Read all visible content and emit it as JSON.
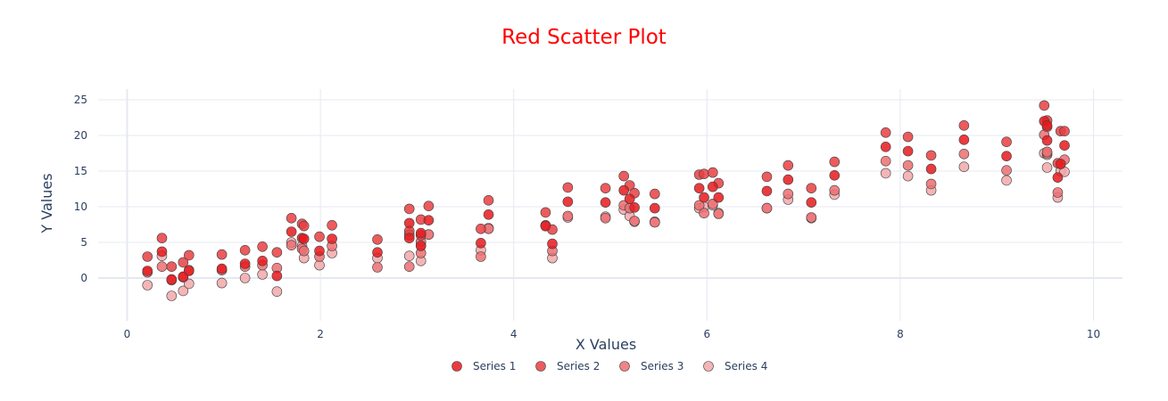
{
  "chart_data": {
    "type": "scatter",
    "title": "Red Scatter Plot",
    "title_color": "#ff0000",
    "xlabel": "X Values",
    "ylabel": "Y Values",
    "xlim": [
      -0.3,
      10.3
    ],
    "ylim": [
      -6,
      26.5
    ],
    "xticks": [
      0,
      2,
      4,
      6,
      8,
      10
    ],
    "yticks": [
      0,
      5,
      10,
      15,
      20,
      25
    ],
    "grid": true,
    "legend_position": "bottom-center",
    "x": [
      0.21,
      0.36,
      0.46,
      0.58,
      0.64,
      0.98,
      1.22,
      1.4,
      1.55,
      1.7,
      1.81,
      1.83,
      1.99,
      2.12,
      2.59,
      2.92,
      2.92,
      3.04,
      3.04,
      3.12,
      3.66,
      3.74,
      4.33,
      4.4,
      4.56,
      4.95,
      5.14,
      5.2,
      5.25,
      5.46,
      5.92,
      5.97,
      6.06,
      6.12,
      6.62,
      6.84,
      7.08,
      7.32,
      7.85,
      8.08,
      8.32,
      8.66,
      9.1,
      9.49,
      9.52,
      9.52,
      9.63,
      9.66,
      9.7
    ],
    "series": [
      {
        "name": "Series 1",
        "color": "#e8191c",
        "y": [
          1.0,
          3.7,
          -0.2,
          0.2,
          1.0,
          1.3,
          2.0,
          2.4,
          0.3,
          6.5,
          5.6,
          5.5,
          3.8,
          5.5,
          3.6,
          5.6,
          7.7,
          4.5,
          6.3,
          8.1,
          4.9,
          8.9,
          7.3,
          4.8,
          10.7,
          10.6,
          12.3,
          11.1,
          9.9,
          9.8,
          12.6,
          11.3,
          12.8,
          11.3,
          12.2,
          13.8,
          10.6,
          14.4,
          18.4,
          17.8,
          15.3,
          19.4,
          17.1,
          22.0,
          19.3,
          21.4,
          14.1,
          16.0,
          18.6
        ]
      },
      {
        "name": "Series 2",
        "color": "#e93e42",
        "y": [
          3.0,
          5.6,
          1.6,
          2.2,
          3.2,
          3.3,
          3.9,
          4.4,
          3.6,
          8.4,
          7.6,
          7.3,
          5.8,
          7.4,
          5.4,
          9.7,
          6.6,
          8.2,
          6.0,
          10.1,
          6.9,
          10.9,
          9.2,
          6.8,
          12.7,
          12.6,
          14.3,
          13.0,
          11.9,
          11.8,
          14.5,
          14.6,
          14.8,
          13.3,
          14.2,
          15.8,
          12.6,
          16.3,
          20.4,
          19.8,
          17.2,
          21.4,
          19.1,
          24.2,
          22.1,
          21.2,
          16.1,
          20.6,
          20.6
        ]
      },
      {
        "name": "Series 3",
        "color": "#ec6f72",
        "y": [
          0.8,
          1.6,
          -0.3,
          0.1,
          1.1,
          1.1,
          1.6,
          1.8,
          1.4,
          4.6,
          4.1,
          3.8,
          3.0,
          4.5,
          1.5,
          6.0,
          1.6,
          3.5,
          5.1,
          6.1,
          3.0,
          6.9,
          7.3,
          3.8,
          8.7,
          8.4,
          10.2,
          9.8,
          8.0,
          7.8,
          10.2,
          9.1,
          10.4,
          9.0,
          9.8,
          11.8,
          8.5,
          12.3,
          16.4,
          15.8,
          13.2,
          17.4,
          15.1,
          20.1,
          17.5,
          17.7,
          12.0,
          16.0,
          16.6
        ]
      },
      {
        "name": "Series 4",
        "color": "#f2a8aa",
        "y": [
          -1.0,
          3.1,
          -2.5,
          -1.8,
          -0.8,
          -0.7,
          0.0,
          0.5,
          -1.9,
          5.0,
          4.5,
          2.8,
          1.8,
          3.5,
          2.8,
          3.1,
          6.1,
          2.4,
          4.6,
          6.1,
          3.9,
          7.0,
          7.4,
          2.8,
          8.5,
          8.6,
          9.6,
          8.7,
          7.9,
          7.9,
          9.8,
          10.0,
          10.2,
          9.1,
          9.8,
          11.0,
          8.4,
          11.7,
          14.7,
          14.3,
          12.3,
          15.6,
          13.7,
          17.5,
          15.5,
          17.3,
          11.3,
          15.0,
          14.9
        ]
      }
    ]
  }
}
